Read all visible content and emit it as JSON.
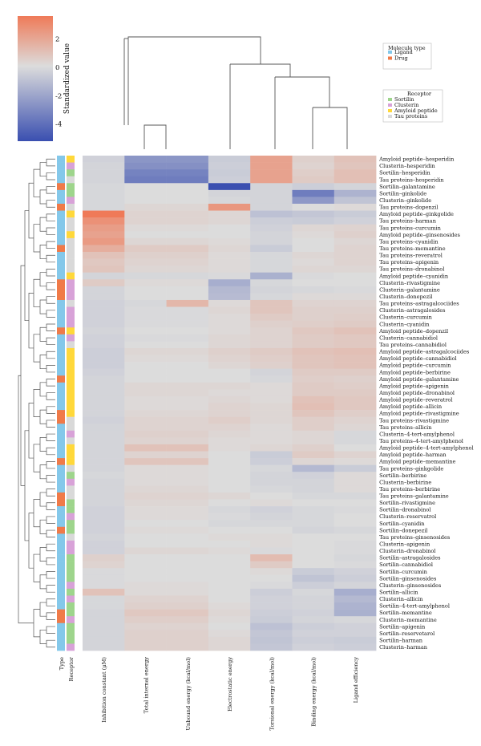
{
  "chart_data": {
    "type": "heatmap",
    "colorbar": {
      "label": "Standardized value",
      "ticks": [
        2,
        0,
        -2,
        -4
      ],
      "range": [
        -5.2,
        3.6
      ],
      "colors": {
        "low": "#3a4fb0",
        "mid": "#dcdcdc",
        "high": "#ef7a58"
      }
    },
    "legend_molecule": {
      "title": "Molecule type",
      "items": [
        {
          "label": "Ligand",
          "color": "#84c8ea"
        },
        {
          "label": "Drug",
          "color": "#f07a48"
        }
      ]
    },
    "legend_receptor": {
      "title": "Receptor",
      "items": [
        {
          "label": "Sortilin",
          "color": "#9ed58c"
        },
        {
          "label": "Clusterin",
          "color": "#d8a2d8"
        },
        {
          "label": "Amyloid peptide",
          "color": "#ffd83a"
        },
        {
          "label": "Tau proteins",
          "color": "#d9d9d9"
        }
      ]
    },
    "annotation_labels": [
      "Type",
      "Receptor"
    ],
    "columns": [
      "Inhibition constant (μM)",
      "Total internal energy",
      "Unbound energy (kcal/mol)",
      "Electrostatic energy",
      "Torsional energy (kcal/mol)",
      "Binding energy (kcal/mol)",
      "Ligand efficiency"
    ],
    "rows": [
      "Amyloid peptide–hesperidin",
      "Clusterin–hesperidin",
      "Sortilin–hesperidin",
      "Tau proteins–hesperidin",
      "Sortilin–galantamine",
      "Sortilin–ginkolide",
      "Clusterin–ginkolide",
      "Tau proteins–dopenzil",
      "Amyloid peptide–ginkgolide",
      "Tau proteins–harman",
      "Tau proteins–curcumin",
      "Amyloid peptide–ginsenosides",
      "Tau proteins–cyanidin",
      "Tau proteins–memantine",
      "Tau proteins–reveratrol",
      "Tau proteins–apigenin",
      "Tau proteins–dronabinol",
      "Amyloid peptide–cyanidin",
      "Clusterin–rivastigmine",
      "Clusterin–galantamine",
      "Clusterin–donepezil",
      "Tau proteins–astragalcociides",
      "Clusterin–astragalosides",
      "Clusterin–curcumin",
      "Clusterin–cyanidin",
      "Amyloid peptide–dopenzil",
      "Clusterin–cannabidiol",
      "Tau proteins–cannabidiol",
      "Amyloid peptide–astragalcociides",
      "Amyloid peptide–cannabidiol",
      "Amyloid peptide–curcumin",
      "Amyloid peptide–berbirine",
      "Amyloid peptide–galantamine",
      "Amyloid peptide–apigenin",
      "Amyloid peptide–dronabinol",
      "Amyloid peptide–reveratrol",
      "Amyloid peptide–allicin",
      "Amyloid peptide–rivastigmine",
      "Tau proteins–rivastigmine",
      "Tau proteins–allicin",
      "Clusterin–4-tert-amylphenol",
      "Tau proteins–4-tert-amylphenol",
      "Amyloid peptide–4-tert-amylphenol",
      "Amyloid peptide–harman",
      "Amyloid peptide–memantine",
      "Tau proteins–ginkgolide",
      "Sortilin–berbirine",
      "Clusterin–berbirine",
      "Tau proteins–berbirine",
      "Tau proteins–galantamine",
      "Sortilin–rivastigmine",
      "Sortilin–dronabinol",
      "Clusterin–reservatrol",
      "Sortilin–cyanidin",
      "Sortilin–donepezil",
      "Tau proteins–ginsenosides",
      "Clusterin–apigenin",
      "Clusterin–dronabinol",
      "Sortilin–astragalosides",
      "Sortilin–cannabidiol",
      "Sortilin–curcumin",
      "Sortilin–ginsenosides",
      "Clusterin–ginsenosides",
      "Sortilin–allicin",
      "Clusterin–allicin",
      "Sortilin–4-tert-amylphenol",
      "Sortilin–memantine",
      "Clusterin–memantine",
      "Sortilin–apigenin",
      "Sortilin–reservetarol",
      "Sortilin–harman",
      "Clusterin–harman"
    ],
    "row_type": [
      "Ligand",
      "Ligand",
      "Ligand",
      "Ligand",
      "Drug",
      "Ligand",
      "Ligand",
      "Drug",
      "Ligand",
      "Ligand",
      "Ligand",
      "Ligand",
      "Ligand",
      "Drug",
      "Ligand",
      "Ligand",
      "Ligand",
      "Ligand",
      "Drug",
      "Drug",
      "Drug",
      "Ligand",
      "Ligand",
      "Ligand",
      "Ligand",
      "Drug",
      "Ligand",
      "Ligand",
      "Ligand",
      "Ligand",
      "Ligand",
      "Ligand",
      "Drug",
      "Ligand",
      "Ligand",
      "Ligand",
      "Ligand",
      "Drug",
      "Drug",
      "Ligand",
      "Ligand",
      "Ligand",
      "Ligand",
      "Ligand",
      "Drug",
      "Ligand",
      "Ligand",
      "Ligand",
      "Ligand",
      "Drug",
      "Drug",
      "Ligand",
      "Ligand",
      "Ligand",
      "Drug",
      "Ligand",
      "Ligand",
      "Ligand",
      "Ligand",
      "Ligand",
      "Ligand",
      "Ligand",
      "Ligand",
      "Ligand",
      "Ligand",
      "Ligand",
      "Drug",
      "Drug",
      "Ligand",
      "Ligand",
      "Ligand",
      "Ligand"
    ],
    "values": [
      [
        -0.4,
        -2.6,
        -2.6,
        -0.6,
        2.0,
        0.4,
        0.9
      ],
      [
        -0.3,
        -2.8,
        -2.8,
        -0.5,
        2.0,
        0.3,
        0.8
      ],
      [
        -0.3,
        -3.3,
        -3.3,
        -0.6,
        2.0,
        0.5,
        1.0
      ],
      [
        -0.3,
        -3.5,
        -3.5,
        -0.5,
        2.0,
        0.6,
        1.0
      ],
      [
        -0.2,
        0.0,
        0.0,
        -5.2,
        -0.3,
        -0.5,
        -0.3
      ],
      [
        -0.2,
        0.0,
        0.0,
        -0.3,
        -0.3,
        -3.5,
        -1.5
      ],
      [
        -0.2,
        0.0,
        0.0,
        -0.2,
        -0.3,
        -2.5,
        -0.9
      ],
      [
        -0.2,
        0.2,
        0.2,
        2.4,
        -0.3,
        0.0,
        0.1
      ],
      [
        3.4,
        0.3,
        0.3,
        0.2,
        -1.0,
        -0.8,
        -0.6
      ],
      [
        2.6,
        0.3,
        0.3,
        0.2,
        -0.5,
        -0.6,
        -0.4
      ],
      [
        2.2,
        0.1,
        0.1,
        0.0,
        -0.4,
        0.2,
        0.3
      ],
      [
        2.0,
        0.0,
        0.0,
        0.0,
        -0.3,
        0.1,
        0.4
      ],
      [
        2.3,
        0.2,
        0.2,
        0.1,
        -0.3,
        0.0,
        0.2
      ],
      [
        1.6,
        0.6,
        0.6,
        0.2,
        -0.6,
        0.0,
        0.3
      ],
      [
        0.9,
        0.4,
        0.4,
        0.1,
        -0.2,
        0.2,
        0.3
      ],
      [
        0.7,
        0.3,
        0.3,
        0.1,
        -0.2,
        0.1,
        0.3
      ],
      [
        0.8,
        0.2,
        0.2,
        0.1,
        -0.2,
        0.2,
        0.2
      ],
      [
        -0.3,
        -0.2,
        -0.2,
        -0.1,
        -1.6,
        -0.1,
        0.0
      ],
      [
        0.6,
        0.1,
        0.1,
        -1.7,
        -0.2,
        0.0,
        0.0
      ],
      [
        -0.3,
        0.0,
        0.0,
        -1.3,
        -0.3,
        -0.2,
        -0.1
      ],
      [
        -0.3,
        0.0,
        0.0,
        -1.2,
        -0.2,
        0.1,
        0.1
      ],
      [
        -0.4,
        -0.2,
        1.3,
        0.1,
        0.8,
        0.3,
        0.3
      ],
      [
        -0.4,
        -0.1,
        -0.1,
        0.2,
        0.8,
        0.4,
        0.4
      ],
      [
        -0.4,
        -0.1,
        -0.1,
        0.1,
        0.6,
        0.4,
        0.5
      ],
      [
        -0.4,
        -0.1,
        -0.1,
        0.1,
        0.4,
        0.5,
        0.6
      ],
      [
        -0.3,
        0.0,
        0.0,
        0.1,
        0.3,
        0.7,
        0.9
      ],
      [
        -0.4,
        -0.1,
        -0.1,
        0.2,
        0.3,
        0.6,
        0.7
      ],
      [
        -0.4,
        0.0,
        0.0,
        0.2,
        0.3,
        0.6,
        0.7
      ],
      [
        -0.5,
        0.2,
        0.2,
        0.4,
        0.6,
        0.9,
        1.0
      ],
      [
        -0.5,
        0.1,
        0.1,
        0.3,
        0.5,
        0.8,
        0.9
      ],
      [
        -0.5,
        0.0,
        0.0,
        0.2,
        0.4,
        0.8,
        0.9
      ],
      [
        -0.4,
        0.0,
        0.0,
        0.0,
        -0.3,
        0.6,
        0.6
      ],
      [
        -0.3,
        0.0,
        0.0,
        0.0,
        -0.2,
        0.5,
        0.4
      ],
      [
        -0.3,
        0.2,
        0.2,
        0.2,
        0.1,
        0.6,
        0.5
      ],
      [
        -0.3,
        0.2,
        0.2,
        0.1,
        0.1,
        0.6,
        0.6
      ],
      [
        -0.3,
        0.1,
        0.1,
        0.2,
        0.1,
        0.9,
        0.7
      ],
      [
        -0.3,
        0.1,
        0.1,
        0.3,
        0.2,
        1.0,
        0.7
      ],
      [
        -0.3,
        0.2,
        0.2,
        0.3,
        0.2,
        0.8,
        0.5
      ],
      [
        -0.4,
        0.3,
        0.3,
        0.5,
        0.2,
        0.5,
        0.3
      ],
      [
        -0.3,
        0.3,
        0.3,
        0.3,
        0.1,
        0.5,
        0.2
      ],
      [
        -0.3,
        0.4,
        0.4,
        0.2,
        0.1,
        0.2,
        -0.2
      ],
      [
        -0.3,
        0.3,
        0.3,
        0.1,
        0.1,
        0.2,
        -0.2
      ],
      [
        -0.3,
        0.9,
        0.9,
        0.1,
        0.2,
        0.4,
        0.0
      ],
      [
        -0.3,
        0.3,
        0.3,
        0.0,
        -0.6,
        0.6,
        0.3
      ],
      [
        -0.3,
        0.8,
        0.8,
        0.0,
        -0.5,
        0.2,
        0.1
      ],
      [
        -0.3,
        0.1,
        0.1,
        0.0,
        -0.2,
        -1.3,
        -0.6
      ],
      [
        -0.2,
        0.1,
        0.1,
        0.0,
        -0.3,
        -0.4,
        0.1
      ],
      [
        -0.3,
        0.1,
        0.1,
        0.0,
        -0.3,
        -0.3,
        0.1
      ],
      [
        -0.3,
        0.2,
        0.2,
        0.0,
        -0.2,
        -0.3,
        0.1
      ],
      [
        -0.3,
        0.3,
        0.3,
        0.2,
        0.0,
        -0.2,
        -0.2
      ],
      [
        -0.3,
        0.2,
        0.2,
        0.0,
        0.1,
        0.0,
        0.0
      ],
      [
        -0.4,
        0.1,
        0.1,
        -0.2,
        -0.4,
        -0.2,
        -0.1
      ],
      [
        -0.4,
        0.1,
        0.1,
        -0.1,
        -0.3,
        -0.2,
        0.0
      ],
      [
        -0.4,
        0.0,
        0.0,
        -0.2,
        -0.2,
        -0.2,
        0.0
      ],
      [
        -0.4,
        0.1,
        0.1,
        0.0,
        0.0,
        -0.3,
        -0.2
      ],
      [
        -0.3,
        0.0,
        0.0,
        0.1,
        0.1,
        0.0,
        0.0
      ],
      [
        -0.4,
        0.0,
        0.0,
        0.0,
        0.1,
        0.0,
        -0.1
      ],
      [
        -0.4,
        0.2,
        0.2,
        0.1,
        -0.1,
        0.0,
        -0.1
      ],
      [
        0.4,
        0.0,
        0.0,
        0.0,
        1.1,
        0.0,
        -0.2
      ],
      [
        0.3,
        0.0,
        0.0,
        0.0,
        0.6,
        0.0,
        -0.1
      ],
      [
        -0.1,
        0.0,
        0.0,
        0.0,
        0.1,
        -0.6,
        -0.4
      ],
      [
        -0.1,
        0.0,
        0.0,
        0.0,
        0.0,
        -0.9,
        -0.5
      ],
      [
        -0.1,
        0.1,
        0.1,
        0.0,
        -0.1,
        -0.5,
        -0.3
      ],
      [
        0.9,
        0.1,
        0.1,
        0.0,
        -0.5,
        -0.2,
        -1.7
      ],
      [
        -0.2,
        0.3,
        0.3,
        0.0,
        -0.4,
        -0.3,
        -1.3
      ],
      [
        -0.2,
        0.4,
        0.4,
        0.1,
        -0.4,
        -0.3,
        -1.5
      ],
      [
        -0.3,
        0.7,
        0.7,
        0.2,
        -0.5,
        -0.4,
        -1.6
      ],
      [
        -0.3,
        0.5,
        0.5,
        0.1,
        -0.6,
        -0.3,
        -0.2
      ],
      [
        -0.3,
        0.3,
        0.3,
        0.0,
        -1.0,
        -0.5,
        -0.4
      ],
      [
        -0.3,
        0.4,
        0.4,
        0.1,
        -0.8,
        -0.4,
        -0.4
      ],
      [
        -0.3,
        0.4,
        0.4,
        0.2,
        -0.9,
        -0.5,
        -0.6
      ],
      [
        -0.3,
        0.4,
        0.4,
        0.2,
        -0.8,
        -0.4,
        -0.5
      ]
    ]
  }
}
